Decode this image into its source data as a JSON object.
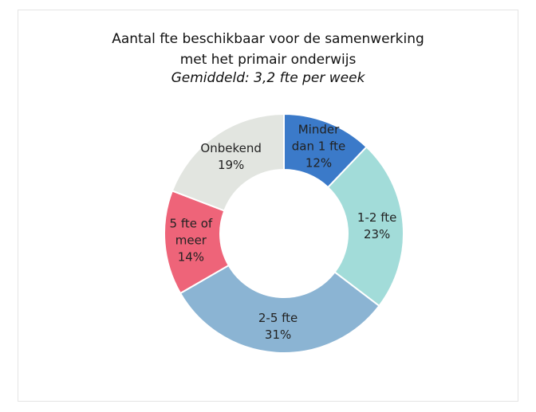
{
  "chart_data": {
    "type": "donut",
    "title": "Aantal fte beschikbaar voor de samenwerking met het primair onderwijs",
    "subtitle": "Gemiddeld: 3,2 fte per week",
    "categories": [
      "Minder dan 1 fte",
      "1-2 fte",
      "2-5 fte",
      "5 fte of meer",
      "Onbekend"
    ],
    "values": [
      12,
      23,
      31,
      14,
      19
    ],
    "value_labels": [
      "12%",
      "23%",
      "31%",
      "14%",
      "19%"
    ],
    "colors": [
      "#3b7ac9",
      "#a2dcd9",
      "#8bb4d3",
      "#ee6479",
      "#e2e5e0"
    ]
  }
}
